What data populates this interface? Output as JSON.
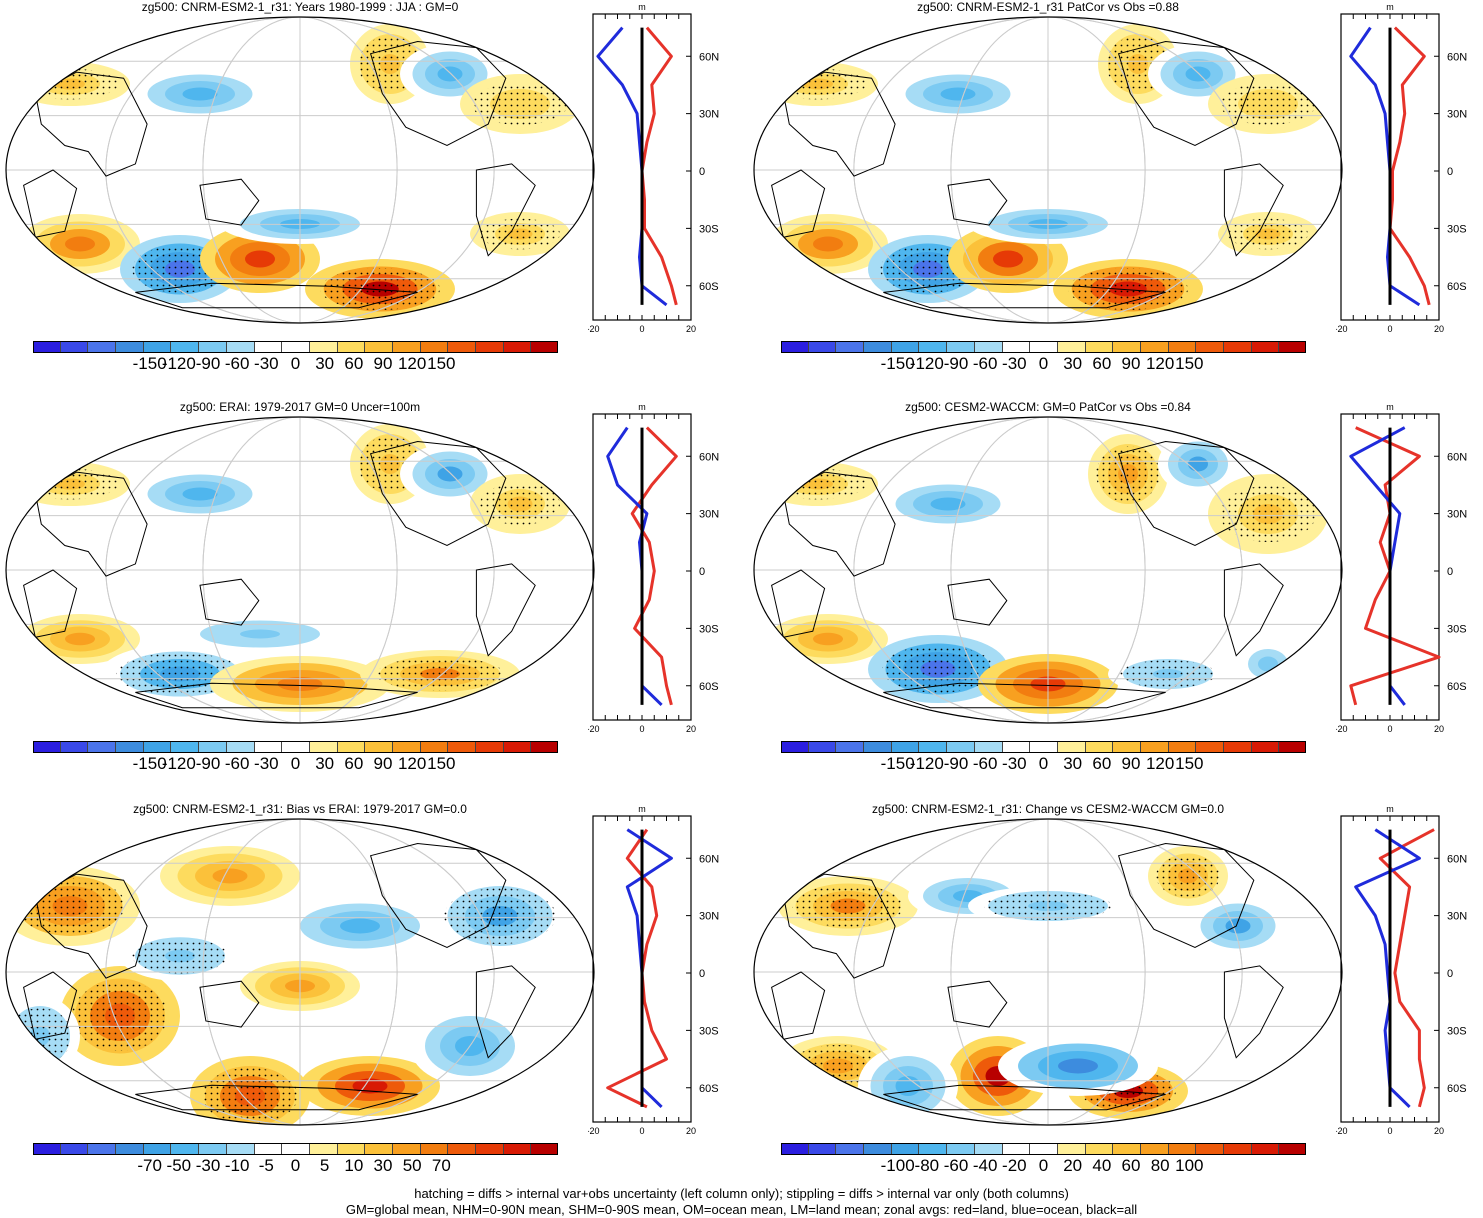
{
  "colors": {
    "scale": [
      "#2b1ee0",
      "#3a49e8",
      "#4b74ea",
      "#3d8cde",
      "#3fa3e6",
      "#4fb6ee",
      "#7ccaf2",
      "#a6dcf5",
      "#ffffff",
      "#ffffff",
      "#fff09a",
      "#fddb5e",
      "#fbc13a",
      "#f8a020",
      "#f27d10",
      "#ee5a0a",
      "#e63a06",
      "#d81a04",
      "#b80000"
    ],
    "land": "#e6332a",
    "ocean": "#1f2bdb",
    "all": "#000000"
  },
  "panels": [
    {
      "title": "zg500: CNRM-ESM2-1_r31: Years 1980-1999 : JJA : GM=0",
      "colorbar_labels": [
        "-150",
        "-120",
        "-90",
        "-60",
        "-30",
        "0",
        "30",
        "60",
        "90",
        "120",
        "150"
      ],
      "zonal_axis": {
        "unit": "m",
        "x_ticks": [
          "-20",
          "0",
          "20"
        ],
        "lat_labels": [
          "60N",
          "30N",
          "0",
          "30S",
          "60S"
        ]
      }
    },
    {
      "title": "zg500: CNRM-ESM2-1_r31 PatCor vs Obs =0.88",
      "colorbar_labels": [
        "-150",
        "-120",
        "-90",
        "-60",
        "-30",
        "0",
        "30",
        "60",
        "90",
        "120",
        "150"
      ],
      "zonal_axis": {
        "unit": "m",
        "x_ticks": [
          "-20",
          "0",
          "20"
        ],
        "lat_labels": [
          "60N",
          "30N",
          "0",
          "30S",
          "60S"
        ]
      }
    },
    {
      "title": "zg500: ERAI: 1979-2017 GM=0 Uncer=100m",
      "colorbar_labels": [
        "-150",
        "-120",
        "-90",
        "-60",
        "-30",
        "0",
        "30",
        "60",
        "90",
        "120",
        "150"
      ],
      "zonal_axis": {
        "unit": "m",
        "x_ticks": [
          "-20",
          "0",
          "20"
        ],
        "lat_labels": [
          "60N",
          "30N",
          "0",
          "30S",
          "60S"
        ]
      }
    },
    {
      "title": "zg500: CESM2-WACCM: GM=0 PatCor vs Obs =0.84",
      "colorbar_labels": [
        "-150",
        "-120",
        "-90",
        "-60",
        "-30",
        "0",
        "30",
        "60",
        "90",
        "120",
        "150"
      ],
      "zonal_axis": {
        "unit": "m",
        "x_ticks": [
          "-20",
          "0",
          "20"
        ],
        "lat_labels": [
          "60N",
          "30N",
          "0",
          "30S",
          "60S"
        ]
      }
    },
    {
      "title": "zg500: CNRM-ESM2-1_r31: Bias vs ERAI: 1979-2017 GM=0.0",
      "colorbar_labels": [
        "-70",
        "-50",
        "-30",
        "-10",
        "-5",
        "0",
        "5",
        "10",
        "30",
        "50",
        "70"
      ],
      "zonal_axis": {
        "unit": "m",
        "x_ticks": [
          "-20",
          "0",
          "20"
        ],
        "lat_labels": [
          "60N",
          "30N",
          "0",
          "30S",
          "60S"
        ]
      }
    },
    {
      "title": "zg500: CNRM-ESM2-1_r31: Change vs CESM2-WACCM GM=0.0",
      "colorbar_labels": [
        "-100",
        "-80",
        "-60",
        "-40",
        "-20",
        "0",
        "20",
        "40",
        "60",
        "80",
        "100"
      ],
      "zonal_axis": {
        "unit": "m",
        "x_ticks": [
          "-20",
          "0",
          "20"
        ],
        "lat_labels": [
          "60N",
          "30N",
          "0",
          "30S",
          "60S"
        ]
      }
    }
  ],
  "chart_data": [
    {
      "type": "heatmap",
      "title": "zg500: CNRM-ESM2-1_r31: Years 1980-1999 : JJA : GM=0",
      "units": "m",
      "color_range": [
        -150,
        150
      ],
      "zonal_mean": {
        "lat": [
          75,
          60,
          45,
          30,
          15,
          0,
          -15,
          -30,
          -45,
          -60,
          -70
        ],
        "land": [
          2,
          12,
          4,
          5,
          2,
          0,
          1,
          1,
          8,
          12,
          14
        ],
        "ocean": [
          -8,
          -18,
          -8,
          -2,
          -1,
          0,
          0,
          0,
          -1,
          0,
          10
        ],
        "all": [
          0,
          0,
          0,
          0,
          0,
          0,
          0,
          0,
          0,
          0,
          0
        ]
      }
    },
    {
      "type": "heatmap",
      "title": "zg500: CNRM-ESM2-1_r31 PatCor vs Obs =0.88",
      "units": "m",
      "color_range": [
        -150,
        150
      ],
      "zonal_mean": {
        "lat": [
          75,
          60,
          45,
          30,
          15,
          0,
          -15,
          -30,
          -45,
          -60,
          -70
        ],
        "land": [
          2,
          14,
          5,
          6,
          4,
          1,
          1,
          0,
          8,
          14,
          16
        ],
        "ocean": [
          -8,
          -16,
          -6,
          -2,
          -1,
          0,
          0,
          0,
          -1,
          0,
          12
        ],
        "all": [
          0,
          0,
          0,
          0,
          0,
          0,
          0,
          0,
          0,
          0,
          0
        ]
      }
    },
    {
      "type": "heatmap",
      "title": "zg500: ERAI: 1979-2017 GM=0 Uncer=100m",
      "units": "m",
      "color_range": [
        -150,
        150
      ],
      "zonal_mean": {
        "lat": [
          75,
          60,
          45,
          30,
          15,
          0,
          -15,
          -30,
          -45,
          -60,
          -70
        ],
        "land": [
          2,
          14,
          4,
          -4,
          3,
          5,
          3,
          -3,
          8,
          10,
          12
        ],
        "ocean": [
          -6,
          -14,
          -10,
          2,
          -1,
          0,
          0,
          0,
          0,
          0,
          8
        ],
        "all": [
          0,
          0,
          0,
          0,
          0,
          0,
          0,
          0,
          0,
          0,
          0
        ]
      }
    },
    {
      "type": "heatmap",
      "title": "zg500: CESM2-WACCM: GM=0 PatCor vs Obs =0.84",
      "units": "m",
      "color_range": [
        -150,
        150
      ],
      "zonal_mean": {
        "lat": [
          75,
          60,
          45,
          30,
          15,
          0,
          -15,
          -30,
          -45,
          -60,
          -70
        ],
        "land": [
          -14,
          12,
          -2,
          0,
          -4,
          0,
          -6,
          -10,
          20,
          -16,
          -14
        ],
        "ocean": [
          6,
          -16,
          -6,
          4,
          2,
          0,
          0,
          0,
          0,
          0,
          6
        ],
        "all": [
          0,
          0,
          0,
          0,
          0,
          0,
          0,
          0,
          0,
          0,
          0
        ]
      }
    },
    {
      "type": "heatmap",
      "title": "zg500: CNRM-ESM2-1_r31: Bias vs ERAI: 1979-2017 GM=0.0",
      "units": "m",
      "color_range": [
        -70,
        70
      ],
      "zonal_mean": {
        "lat": [
          75,
          60,
          45,
          30,
          15,
          0,
          -15,
          -30,
          -45,
          -60,
          -70
        ],
        "land": [
          2,
          -6,
          4,
          6,
          2,
          0,
          1,
          4,
          10,
          -14,
          2
        ],
        "ocean": [
          -6,
          12,
          -6,
          -2,
          -1,
          0,
          0,
          0,
          0,
          0,
          8
        ],
        "all": [
          0,
          0,
          0,
          0,
          0,
          0,
          0,
          0,
          0,
          0,
          0
        ]
      }
    },
    {
      "type": "heatmap",
      "title": "zg500: CNRM-ESM2-1_r31: Change vs CESM2-WACCM GM=0.0",
      "units": "m",
      "color_range": [
        -100,
        100
      ],
      "zonal_mean": {
        "lat": [
          75,
          60,
          45,
          30,
          15,
          0,
          -15,
          -30,
          -45,
          -60,
          -70
        ],
        "land": [
          18,
          -4,
          8,
          6,
          4,
          2,
          4,
          12,
          12,
          14,
          12
        ],
        "ocean": [
          -6,
          12,
          -14,
          -6,
          -2,
          -1,
          0,
          -2,
          -1,
          0,
          8
        ],
        "all": [
          0,
          0,
          0,
          0,
          0,
          0,
          0,
          0,
          0,
          0,
          0
        ]
      }
    }
  ],
  "footer": {
    "line1": "hatching = diffs > internal var+obs uncertainty (left column only); stippling = diffs > internal var only (both columns)",
    "line2": "GM=global mean, NHM=0-90N mean, SHM=0-90S mean, OM=ocean mean, LM=land mean; zonal avgs: red=land, blue=ocean, black=all"
  }
}
